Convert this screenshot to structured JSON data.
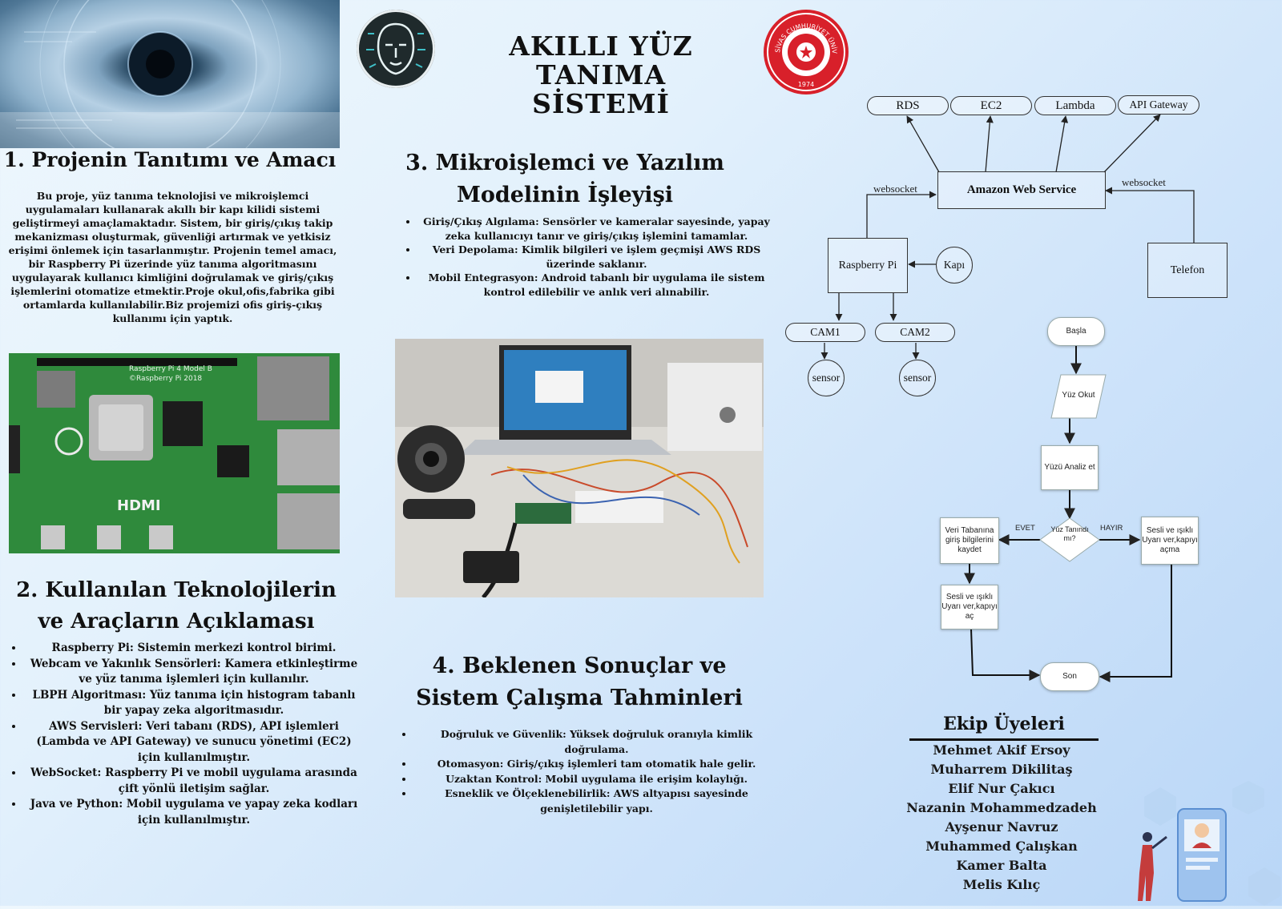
{
  "title": {
    "line1": "AKILLI YÜZ TANIMA",
    "line2": "SİSTEMİ"
  },
  "logos": {
    "left": "face-ai-logo",
    "right": "university-seal-logo",
    "seal_text": "SİVAS CUMHURİYET ÜNİVERSİTESİ",
    "seal_year": "1974"
  },
  "section1": {
    "heading": "1. Projenin Tanıtımı ve Amacı",
    "text": "Bu proje, yüz tanıma teknolojisi ve mikroişlemci uygulamaları kullanarak akıllı bir kapı kilidi sistemi geliştirmeyi amaçlamaktadır. Sistem, bir giriş/çıkış takip mekanizması oluşturmak, güvenliği artırmak ve yetkisiz erişimi önlemek için tasarlanmıştır. Projenin temel amacı, bir Raspberry Pi üzerinde yüz tanıma algoritmasını uygulayarak kullanıcı kimliğini doğrulamak ve giriş/çıkış işlemlerini otomatize etmektir.Proje okul,ofis,fabrika gibi ortamlarda kullanılabilir.Biz projemizi ofis giriş-çıkış kullanımı için yaptık."
  },
  "section2": {
    "heading": "2. Kullanılan Teknolojilerin ve Araçların Açıklaması",
    "items": [
      "Raspberry Pi: Sistemin merkezi kontrol birimi.",
      "Webcam ve Yakınlık Sensörleri: Kamera etkinleştirme ve yüz tanıma işlemleri için kullanılır.",
      "LBPH Algoritması: Yüz tanıma için histogram tabanlı bir yapay zeka algoritmasıdır.",
      "AWS Servisleri: Veri tabanı (RDS), API işlemleri (Lambda ve API Gateway) ve sunucu yönetimi (EC2) için kullanılmıştır.",
      "WebSocket: Raspberry Pi ve mobil uygulama arasında çift yönlü iletişim sağlar.",
      "Java ve Python: Mobil uygulama ve yapay zeka kodları için kullanılmıştır."
    ]
  },
  "section3": {
    "heading": "3. Mikroişlemci ve Yazılım Modelinin İşleyişi",
    "items": [
      "Giriş/Çıkış Algılama: Sensörler ve kameralar sayesinde, yapay zeka kullanıcıyı tanır ve giriş/çıkış işlemini tamamlar.",
      "Veri Depolama: Kimlik bilgileri ve işlem geçmişi AWS RDS üzerinde saklanır.",
      "Mobil Entegrasyon: Android tabanlı bir uygulama ile sistem kontrol edilebilir ve anlık veri alınabilir."
    ]
  },
  "section4": {
    "heading": "4. Beklenen Sonuçlar ve Sistem Çalışma Tahminleri",
    "items": [
      "Doğruluk ve Güvenlik: Yüksek doğruluk oranıyla kimlik doğrulama.",
      "Otomasyon: Giriş/çıkış işlemleri tam otomatik hale gelir.",
      "Uzaktan Kontrol: Mobil uygulama ile erişim kolaylığı.",
      "Esneklik ve Ölçeklenebilirlik: AWS altyapısı sayesinde genişletilebilir yapı."
    ]
  },
  "photos": {
    "eye": "eye-scan-photo",
    "rpi": "raspberry-pi-board-photo",
    "setup": "hardware-setup-photo",
    "rpi_board_text": [
      "Raspberry Pi 4 Model B",
      "©Raspberry Pi 2018",
      "HDMI"
    ]
  },
  "architecture": {
    "services": [
      "RDS",
      "EC2",
      "Lambda",
      "API Gateway"
    ],
    "aws": "Amazon Web Service",
    "websocket_left": "websocket",
    "websocket_right": "websocket",
    "raspberry": "Raspberry Pi",
    "door": "Kapı",
    "phone": "Telefon",
    "cam1": "CAM1",
    "cam2": "CAM2",
    "sensor1": "sensor",
    "sensor2": "sensor"
  },
  "flowchart": {
    "start": "Başla",
    "read": "Yüz Okut",
    "analyze": "Yüzü Analiz et",
    "decision": "Yüz Tanındı mı?",
    "yes": "EVET",
    "no": "HAYIR",
    "save": "Veri Tabanına giriş bilgilerini kaydet",
    "open": "Sesli ve ışıklı Uyarı ver,kapıyı aç",
    "deny": "Sesli ve ışıklı Uyarı ver,kapıyı açma",
    "end": "Son"
  },
  "team": {
    "heading": "Ekip Üyeleri",
    "members": [
      "Mehmet Akif Ersoy",
      "Muharrem Dikilitaş",
      "Elif Nur Çakıcı",
      "Nazanin Mohammedzadeh",
      "Ayşenur Navruz",
      "Muhammed Çalışkan",
      "Kamer Balta",
      "Melis Kılıç"
    ]
  },
  "colors": {
    "accent_red": "#d8202a",
    "board_green": "#2f8a3c",
    "dark_logo": "#1f2a2c"
  }
}
